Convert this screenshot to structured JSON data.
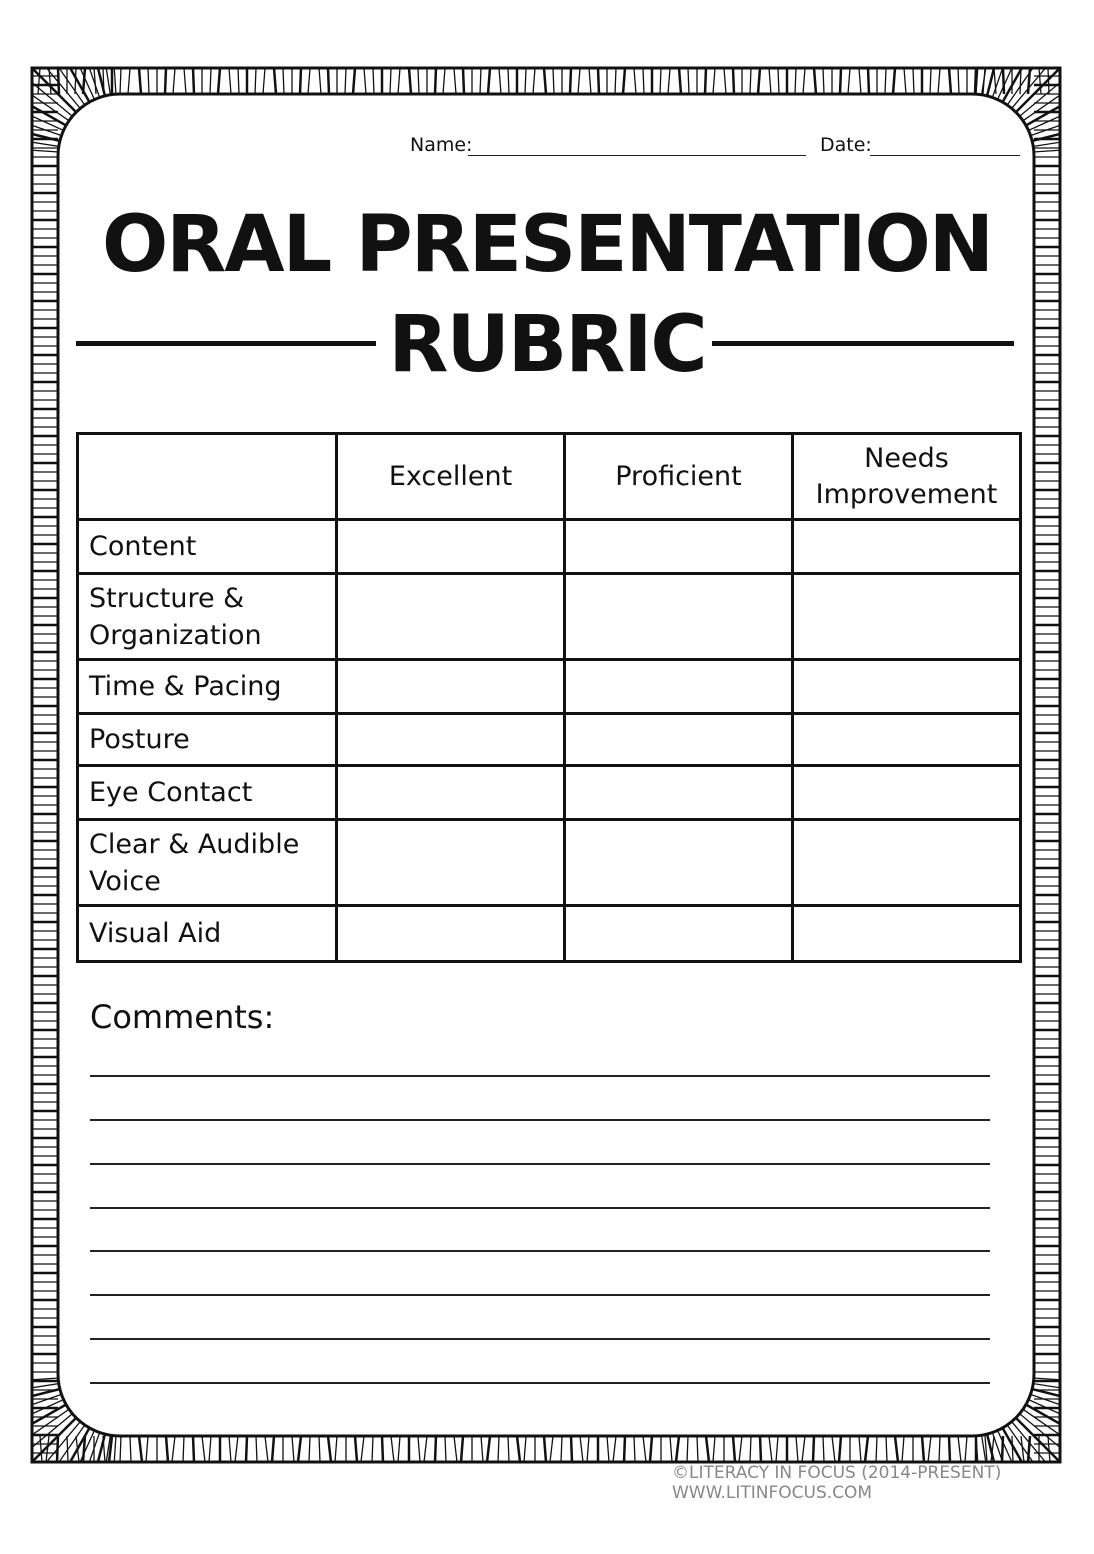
{
  "header": {
    "name_label": "Name:",
    "date_label": "Date:"
  },
  "title": {
    "line1": "ORAL PRESENTATION",
    "line2": "RUBRIC"
  },
  "table": {
    "columns": [
      "",
      "Excellent",
      "Proficient",
      "Needs Improvement"
    ],
    "rows": [
      "Content",
      "Structure & Organization",
      "Time & Pacing",
      "Posture",
      "Eye Contact",
      "Clear & Audible Voice",
      "Visual Aid"
    ]
  },
  "comments": {
    "label": "Comments:"
  },
  "footer": {
    "copyright": "©LITERACY IN FOCUS (2014-PRESENT) WWW.LITINFOCUS.COM"
  }
}
